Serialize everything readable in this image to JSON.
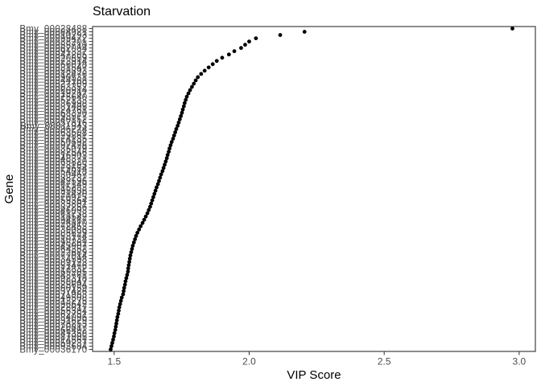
{
  "chart_data": {
    "type": "scatter",
    "title": "Starvation",
    "xlabel": "VIP Score",
    "ylabel": "Gene",
    "x_ticks": [
      1.5,
      2.0,
      2.5,
      3.0
    ],
    "xlim": [
      1.42,
      3.06
    ],
    "grid": "off",
    "legend": "none",
    "point_color": "#000000",
    "tick_color": "#333333",
    "tick_label_color": "#4d4d4d",
    "panel_border_color": "#404040",
    "background_color": "#ffffff",
    "y_order": "genes sorted by descending VIP score, top to bottom; labels overlap illegibly at this size",
    "gene_labels": [
      "Bmy_00028488",
      "Bmy_00084921",
      "Bmy_00010293",
      "Bmy_00099472",
      "Bmy_00038201",
      "Bmy_00055710",
      "Bmy_00062084",
      "Bmy_00091337",
      "Bmy_00047265",
      "Bmy_00020859",
      "Bmy_00073914",
      "Bmy_00066028",
      "Bmy_00031547",
      "Bmy_00058893",
      "Bmy_00012476",
      "Bmy_00090531",
      "Bmy_00044168",
      "Bmy_00027709",
      "Bmy_00083352",
      "Bmy_00060914",
      "Bmy_00019287",
      "Bmy_00075640",
      "Bmy_00052133",
      "Bmy_00036998",
      "Bmy_00081405",
      "Bmy_00024761",
      "Bmy_00068320",
      "Bmy_00093577",
      "Bmy_00040152",
      "Bmy_00057816",
      "Bmy_00011943",
      "Bmy_00086274",
      "Bmy_00063508",
      "Bmy_00029861",
      "Bmy_00074135",
      "Bmy_00050692",
      "Bmy_00097428",
      "Bmy_00035079",
      "Bmy_00082546",
      "Bmy_00016903",
      "Bmy_00048371",
      "Bmy_00065820",
      "Bmy_00023195",
      "Bmy_00079654",
      "Bmy_00054018",
      "Bmy_00030467",
      "Bmy_00088732",
      "Bmy_00042596",
      "Bmy_00067149",
      "Bmy_00015283",
      "Bmy_00095836",
      "Bmy_00021470",
      "Bmy_00070925",
      "Bmy_00059364",
      "Bmy_00033801",
      "Bmy_00087256",
      "Bmy_00046093",
      "Bmy_00061738",
      "Bmy_00018542",
      "Bmy_00094167",
      "Bmy_00026810",
      "Bmy_00072453",
      "Bmy_00039086",
      "Bmy_00085629",
      "Bmy_00053174",
      "Bmy_00010738",
      "Bmy_00098261",
      "Bmy_00045907",
      "Bmy_00064352",
      "Bmy_00022689",
      "Bmy_00077014",
      "Bmy_00034598",
      "Bmy_00089123",
      "Bmy_00051476",
      "Bmy_00017832",
      "Bmy_00069205",
      "Bmy_00043761",
      "Bmy_00092318",
      "Bmy_00058047",
      "Bmy_00025694",
      "Bmy_00080159",
      "Bmy_00037426",
      "Bmy_00071983",
      "Bmy_00049508",
      "Bmy_00013275",
      "Bmy_00096642",
      "Bmy_00028017",
      "Bmy_00055384",
      "Bmy_00062751",
      "Bmy_00084096",
      "Bmy_00031629",
      "Bmy_00078253",
      "Bmy_00020817",
      "Bmy_00066492",
      "Bmy_00041358",
      "Bmy_00087905",
      "Bmy_00014561",
      "Bmy_00059237",
      "Bmy_00093684",
      "Bmy_00036170"
    ],
    "vip_scores": [
      2.975,
      2.205,
      2.115,
      2.025,
      2.0,
      1.985,
      1.97,
      1.945,
      1.925,
      1.9,
      1.88,
      1.865,
      1.85,
      1.835,
      1.822,
      1.81,
      1.802,
      1.795,
      1.788,
      1.781,
      1.775,
      1.769,
      1.765,
      1.761,
      1.758,
      1.754,
      1.751,
      1.747,
      1.743,
      1.739,
      1.735,
      1.73,
      1.726,
      1.722,
      1.718,
      1.713,
      1.709,
      1.705,
      1.702,
      1.698,
      1.695,
      1.691,
      1.687,
      1.683,
      1.679,
      1.674,
      1.67,
      1.666,
      1.662,
      1.657,
      1.653,
      1.649,
      1.645,
      1.641,
      1.637,
      1.633,
      1.628,
      1.623,
      1.617,
      1.611,
      1.605,
      1.598,
      1.592,
      1.586,
      1.581,
      1.577,
      1.573,
      1.569,
      1.566,
      1.563,
      1.56,
      1.558,
      1.556,
      1.554,
      1.552,
      1.551,
      1.548,
      1.545,
      1.542,
      1.54,
      1.537,
      1.535,
      1.533,
      1.528,
      1.525,
      1.522,
      1.519,
      1.517,
      1.515,
      1.512,
      1.51,
      1.508,
      1.506,
      1.504,
      1.501,
      1.499,
      1.496,
      1.493,
      1.49,
      1.487
    ]
  }
}
